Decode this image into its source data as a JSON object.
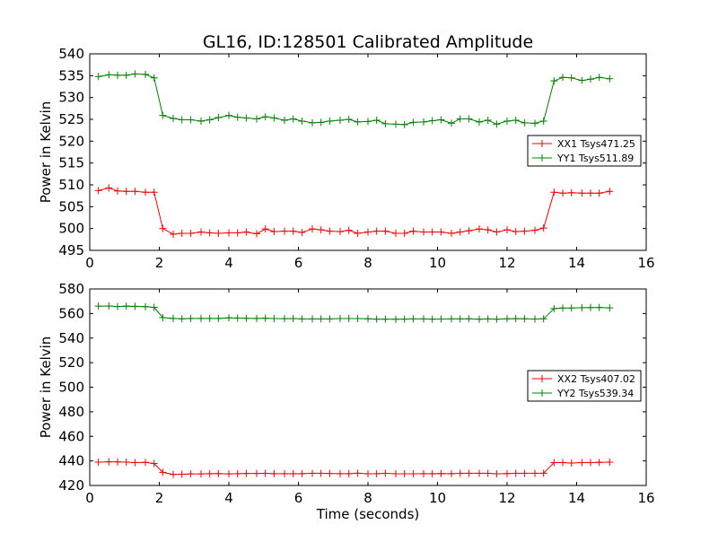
{
  "figure_title": "GL16, ID:128501 Calibrated Amplitude",
  "colors": {
    "red": "#ff0000",
    "green": "#008000",
    "axes": "#000000",
    "background": "#ffffff"
  },
  "chart_data": [
    {
      "type": "line",
      "title": "GL16, ID:128501 Calibrated Amplitude",
      "xlabel": "",
      "ylabel": "Power in Kelvin",
      "xlim": [
        0,
        16
      ],
      "ylim": [
        495,
        540
      ],
      "xticks": [
        0,
        2,
        4,
        6,
        8,
        10,
        12,
        14,
        16
      ],
      "yticks": [
        495,
        500,
        505,
        510,
        515,
        520,
        525,
        530,
        535,
        540
      ],
      "grid": false,
      "legend_position": "right",
      "marker": "plus",
      "series": [
        {
          "name": "XX1 Tsys471.25",
          "color": "#ff0000",
          "x": [
            0.25,
            0.55,
            0.8,
            1.05,
            1.3,
            1.6,
            1.85,
            2.1,
            2.4,
            2.65,
            2.9,
            3.2,
            3.45,
            3.7,
            4.0,
            4.25,
            4.5,
            4.8,
            5.05,
            5.3,
            5.6,
            5.85,
            6.1,
            6.4,
            6.65,
            6.9,
            7.2,
            7.45,
            7.7,
            8.0,
            8.25,
            8.5,
            8.8,
            9.05,
            9.3,
            9.6,
            9.85,
            10.1,
            10.4,
            10.65,
            10.9,
            11.2,
            11.45,
            11.7,
            12.0,
            12.25,
            12.5,
            12.8,
            13.05,
            13.35,
            13.6,
            13.85,
            14.15,
            14.4,
            14.65,
            14.95
          ],
          "y": [
            508.7,
            509.3,
            508.6,
            508.5,
            508.5,
            508.3,
            508.3,
            500.0,
            498.7,
            498.9,
            498.9,
            499.2,
            499.0,
            498.9,
            499.0,
            499.0,
            499.2,
            498.8,
            499.9,
            499.3,
            499.4,
            499.4,
            499.1,
            499.9,
            499.7,
            499.4,
            499.3,
            499.6,
            498.9,
            499.2,
            499.4,
            499.4,
            498.9,
            498.9,
            499.4,
            499.2,
            499.2,
            499.2,
            498.9,
            499.2,
            499.5,
            499.9,
            499.7,
            499.2,
            499.7,
            499.3,
            499.4,
            499.6,
            500.1,
            508.3,
            508.1,
            508.2,
            508.1,
            508.1,
            508.1,
            508.5
          ]
        },
        {
          "name": "YY1 Tsys511.89",
          "color": "#008000",
          "x": [
            0.25,
            0.55,
            0.8,
            1.05,
            1.3,
            1.6,
            1.85,
            2.1,
            2.4,
            2.65,
            2.9,
            3.2,
            3.45,
            3.7,
            4.0,
            4.25,
            4.5,
            4.8,
            5.05,
            5.3,
            5.6,
            5.85,
            6.1,
            6.4,
            6.65,
            6.9,
            7.2,
            7.45,
            7.7,
            8.0,
            8.25,
            8.5,
            8.8,
            9.05,
            9.3,
            9.6,
            9.85,
            10.1,
            10.4,
            10.65,
            10.9,
            11.2,
            11.45,
            11.7,
            12.0,
            12.25,
            12.5,
            12.8,
            13.05,
            13.35,
            13.6,
            13.85,
            14.15,
            14.4,
            14.65,
            14.95
          ],
          "y": [
            534.8,
            535.2,
            535.1,
            535.1,
            535.4,
            535.3,
            534.5,
            525.9,
            525.2,
            524.9,
            524.9,
            524.6,
            524.9,
            525.4,
            525.9,
            525.5,
            525.3,
            525.1,
            525.6,
            525.3,
            524.8,
            525.1,
            524.6,
            524.2,
            524.3,
            524.6,
            524.8,
            525.0,
            524.4,
            524.5,
            524.8,
            524.0,
            523.9,
            523.8,
            524.3,
            524.4,
            524.7,
            524.9,
            524.1,
            525.1,
            525.1,
            524.4,
            524.8,
            523.9,
            524.6,
            524.8,
            524.2,
            524.1,
            524.6,
            533.8,
            534.6,
            534.5,
            533.9,
            534.2,
            534.6,
            534.3
          ]
        }
      ]
    },
    {
      "type": "line",
      "title": "",
      "xlabel": "Time (seconds)",
      "ylabel": "Power in Kelvin",
      "xlim": [
        0,
        16
      ],
      "ylim": [
        420,
        580
      ],
      "xticks": [
        0,
        2,
        4,
        6,
        8,
        10,
        12,
        14,
        16
      ],
      "yticks": [
        420,
        440,
        460,
        480,
        500,
        520,
        540,
        560,
        580
      ],
      "grid": false,
      "legend_position": "right",
      "marker": "plus",
      "series": [
        {
          "name": "XX2 Tsys407.02",
          "color": "#ff0000",
          "x": [
            0.25,
            0.55,
            0.8,
            1.05,
            1.3,
            1.6,
            1.85,
            2.1,
            2.4,
            2.65,
            2.9,
            3.2,
            3.45,
            3.7,
            4.0,
            4.25,
            4.5,
            4.8,
            5.05,
            5.3,
            5.6,
            5.85,
            6.1,
            6.4,
            6.65,
            6.9,
            7.2,
            7.45,
            7.7,
            8.0,
            8.25,
            8.5,
            8.8,
            9.05,
            9.3,
            9.6,
            9.85,
            10.1,
            10.4,
            10.65,
            10.9,
            11.2,
            11.45,
            11.7,
            12.0,
            12.25,
            12.5,
            12.8,
            13.05,
            13.35,
            13.6,
            13.85,
            14.15,
            14.4,
            14.65,
            14.95
          ],
          "y": [
            439.0,
            439.3,
            439.2,
            439.0,
            438.6,
            438.8,
            437.9,
            430.7,
            429.0,
            429.1,
            429.4,
            429.4,
            429.6,
            429.7,
            429.4,
            429.6,
            429.8,
            429.8,
            429.9,
            429.6,
            429.6,
            429.6,
            429.6,
            429.9,
            429.9,
            429.8,
            429.6,
            429.6,
            430.0,
            429.5,
            429.6,
            429.9,
            429.5,
            429.5,
            429.5,
            429.6,
            429.6,
            429.7,
            429.6,
            429.9,
            429.9,
            429.9,
            429.9,
            429.5,
            429.7,
            429.9,
            429.9,
            429.9,
            430.0,
            438.6,
            438.6,
            438.3,
            438.6,
            438.6,
            438.8,
            439.0
          ]
        },
        {
          "name": "YY2 Tsys539.34",
          "color": "#008000",
          "x": [
            0.25,
            0.55,
            0.8,
            1.05,
            1.3,
            1.6,
            1.85,
            2.1,
            2.4,
            2.65,
            2.9,
            3.2,
            3.45,
            3.7,
            4.0,
            4.25,
            4.5,
            4.8,
            5.05,
            5.3,
            5.6,
            5.85,
            6.1,
            6.4,
            6.65,
            6.9,
            7.2,
            7.45,
            7.7,
            8.0,
            8.25,
            8.5,
            8.8,
            9.05,
            9.3,
            9.6,
            9.85,
            10.1,
            10.4,
            10.65,
            10.9,
            11.2,
            11.45,
            11.7,
            12.0,
            12.25,
            12.5,
            12.8,
            13.05,
            13.35,
            13.6,
            13.85,
            14.15,
            14.4,
            14.65,
            14.95
          ],
          "y": [
            566.0,
            566.1,
            565.7,
            566.0,
            565.8,
            565.6,
            565.0,
            556.6,
            556.0,
            555.7,
            556.0,
            556.0,
            556.0,
            556.0,
            556.5,
            556.3,
            556.1,
            556.0,
            556.2,
            555.9,
            555.8,
            555.9,
            555.6,
            555.6,
            555.6,
            555.6,
            555.9,
            555.9,
            555.9,
            555.7,
            555.4,
            555.4,
            555.3,
            555.4,
            555.6,
            555.6,
            555.4,
            555.5,
            555.6,
            555.6,
            555.7,
            555.3,
            555.6,
            555.4,
            555.7,
            555.8,
            555.7,
            555.5,
            555.7,
            564.0,
            564.5,
            564.5,
            564.7,
            564.8,
            564.9,
            564.6
          ]
        }
      ]
    }
  ]
}
